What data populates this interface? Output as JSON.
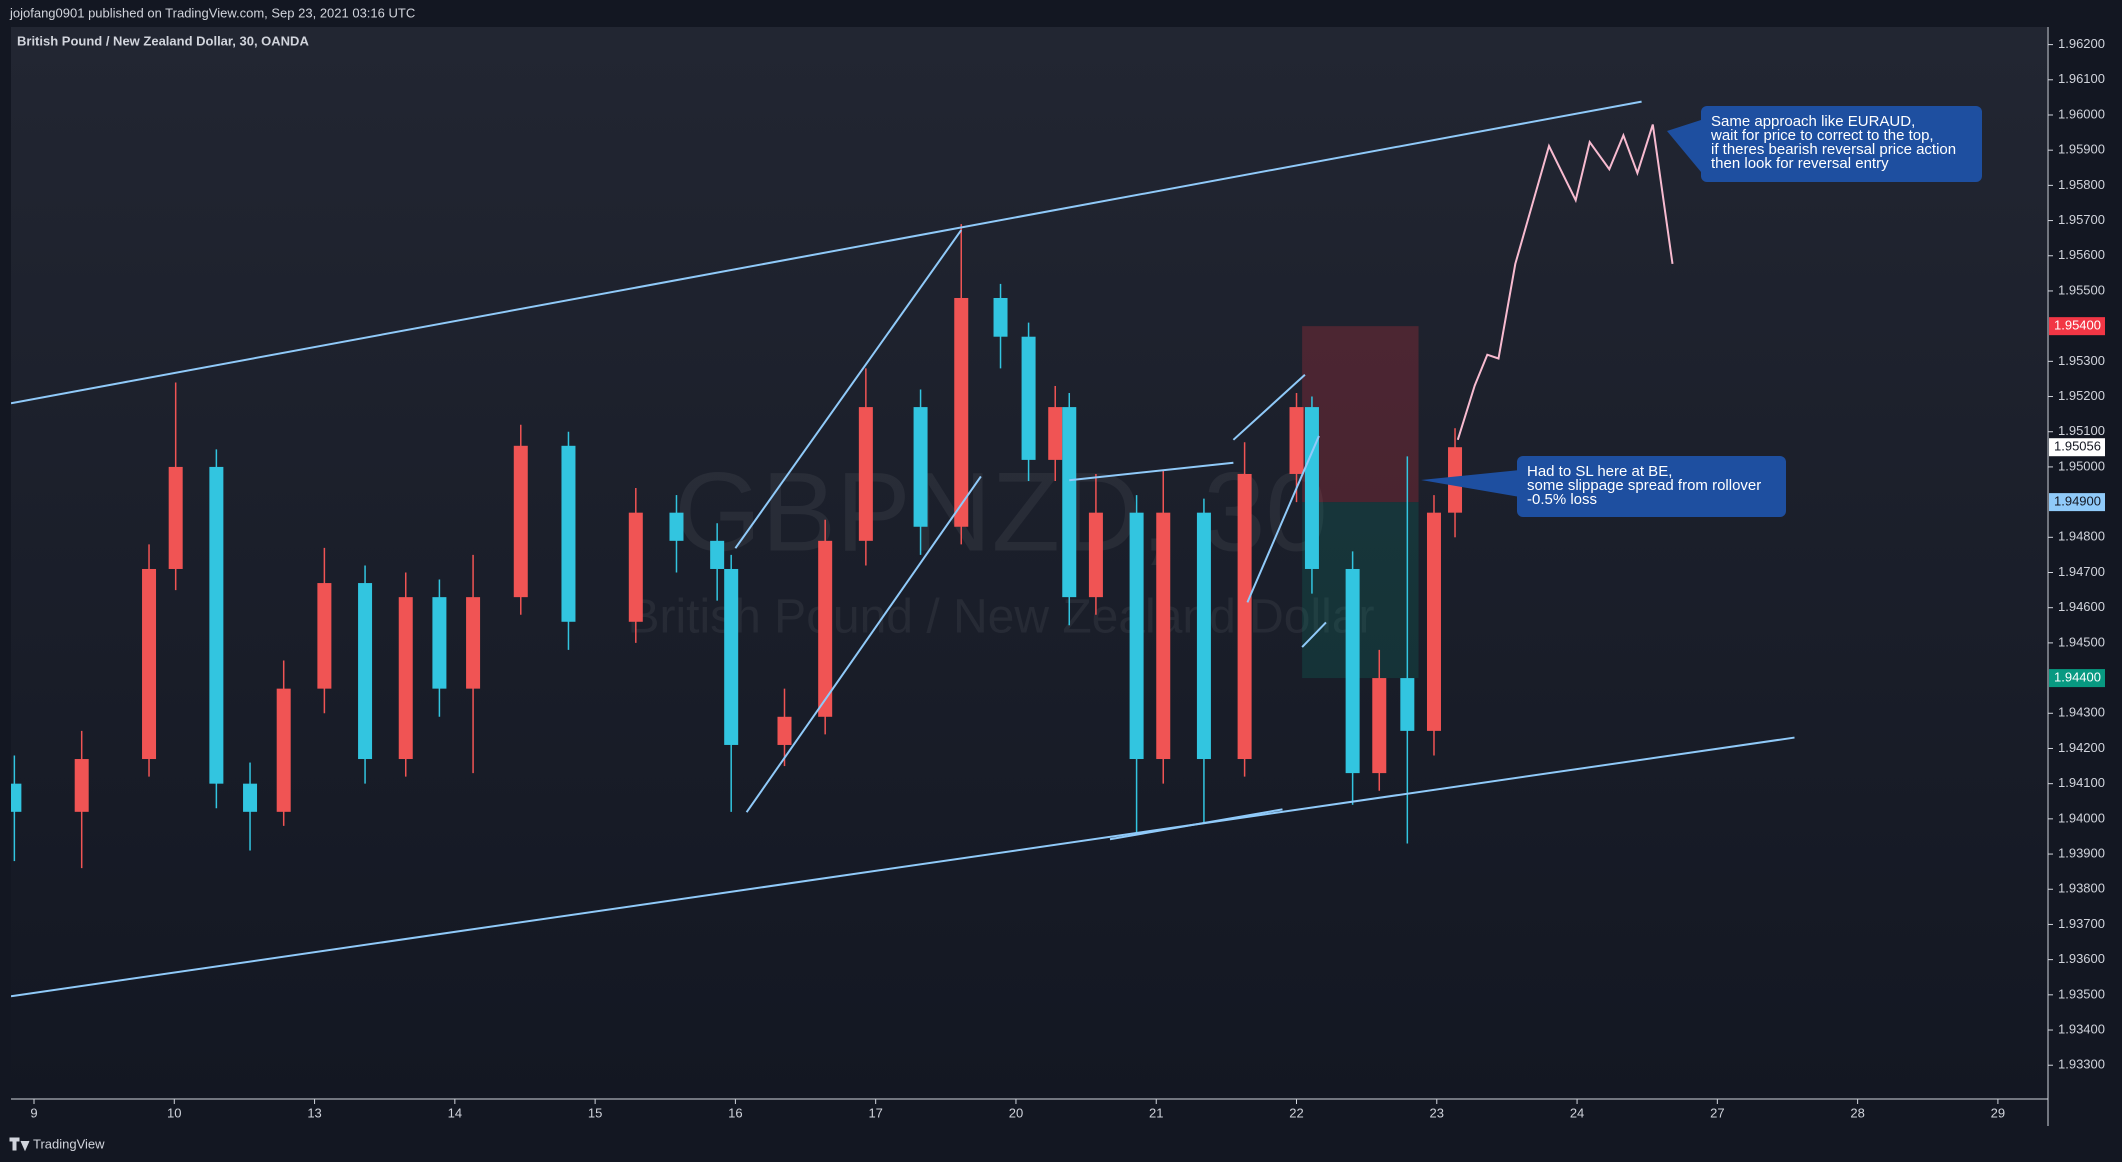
{
  "header": {
    "published": "jojofang0901 published on TradingView.com, Sep 23, 2021 03:16 UTC",
    "symbol": "British Pound / New Zealand Dollar, 30, OANDA",
    "footer": "TradingView"
  },
  "chart_data": {
    "type": "candlestick",
    "watermark": [
      "GBPNZD, 30",
      "British Pound / New Zealand Dollar"
    ],
    "up_color": "#f05454",
    "down_color": "#32c5e0",
    "grid": false,
    "xlim": [
      -0.164,
      14.35
    ],
    "xticks": [
      {
        "value": 0,
        "label": "9"
      },
      {
        "value": 1,
        "label": "10"
      },
      {
        "value": 2,
        "label": "13"
      },
      {
        "value": 3,
        "label": "14"
      },
      {
        "value": 4,
        "label": "15"
      },
      {
        "value": 5,
        "label": "16"
      },
      {
        "value": 6,
        "label": "17"
      },
      {
        "value": 7,
        "label": "20"
      },
      {
        "value": 8,
        "label": "21"
      },
      {
        "value": 9,
        "label": "22"
      },
      {
        "value": 10,
        "label": "23"
      },
      {
        "value": 11,
        "label": "24"
      },
      {
        "value": 12,
        "label": "27"
      },
      {
        "value": 13,
        "label": "28"
      },
      {
        "value": 14,
        "label": "29"
      }
    ],
    "ylim": [
      1.93204,
      1.9625
    ],
    "yticks": [
      {
        "value": 1.962,
        "label": "1.96200"
      },
      {
        "value": 1.961,
        "label": "1.96100"
      },
      {
        "value": 1.96,
        "label": "1.96000"
      },
      {
        "value": 1.959,
        "label": "1.95900"
      },
      {
        "value": 1.958,
        "label": "1.95800"
      },
      {
        "value": 1.957,
        "label": "1.95700"
      },
      {
        "value": 1.956,
        "label": "1.95600"
      },
      {
        "value": 1.955,
        "label": "1.95500"
      },
      {
        "value": 1.953,
        "label": "1.95300"
      },
      {
        "value": 1.952,
        "label": "1.95200"
      },
      {
        "value": 1.951,
        "label": "1.95100"
      },
      {
        "value": 1.95,
        "label": "1.95000"
      },
      {
        "value": 1.948,
        "label": "1.94800"
      },
      {
        "value": 1.947,
        "label": "1.94700"
      },
      {
        "value": 1.946,
        "label": "1.94600"
      },
      {
        "value": 1.945,
        "label": "1.94500"
      },
      {
        "value": 1.943,
        "label": "1.94300"
      },
      {
        "value": 1.942,
        "label": "1.94200"
      },
      {
        "value": 1.941,
        "label": "1.94100"
      },
      {
        "value": 1.94,
        "label": "1.94000"
      },
      {
        "value": 1.939,
        "label": "1.93900"
      },
      {
        "value": 1.938,
        "label": "1.93800"
      },
      {
        "value": 1.937,
        "label": "1.93700"
      },
      {
        "value": 1.936,
        "label": "1.93600"
      },
      {
        "value": 1.935,
        "label": "1.93500"
      },
      {
        "value": 1.934,
        "label": "1.93400"
      },
      {
        "value": 1.933,
        "label": "1.93300"
      }
    ],
    "price_tags": [
      {
        "value": 1.954,
        "label": "1.95400",
        "color": "#f23645",
        "text_color": "#ffffff"
      },
      {
        "value": 1.95056,
        "label": "1.95056",
        "color": "#ffffff",
        "text_color": "#131722"
      },
      {
        "value": 1.949,
        "label": "1.94900",
        "color": "#90caf9",
        "text_color": "#131722"
      },
      {
        "value": 1.944,
        "label": "1.94400",
        "color": "#089981",
        "text_color": "#ffffff"
      }
    ],
    "candles": {
      "x": [
        -0.14,
        0.34,
        0.82,
        1.01,
        1.3,
        1.54,
        1.78,
        2.07,
        2.36,
        2.65,
        2.89,
        3.13,
        3.47,
        3.81,
        4.29,
        4.58,
        4.87,
        4.97,
        5.35,
        5.64,
        5.93,
        6.32,
        6.61,
        6.89,
        7.09,
        7.28,
        7.38,
        7.57,
        7.86,
        8.05,
        8.34,
        8.63,
        9.0,
        9.11,
        9.4,
        9.59,
        9.79,
        9.98,
        10.13
      ],
      "open": [
        1.941,
        1.9402,
        1.9417,
        1.9471,
        1.95,
        1.941,
        1.9402,
        1.9437,
        1.9467,
        1.9417,
        1.9463,
        1.9437,
        1.9463,
        1.9506,
        1.9456,
        1.9487,
        1.9479,
        1.9471,
        1.9421,
        1.9429,
        1.9479,
        1.9517,
        1.9483,
        1.9548,
        1.9537,
        1.9502,
        1.9517,
        1.9463,
        1.9487,
        1.9417,
        1.9487,
        1.9417,
        1.9498,
        1.9517,
        1.9471,
        1.9413,
        1.944,
        1.9425,
        1.9487
      ],
      "high": [
        1.9418,
        1.9425,
        1.9478,
        1.9524,
        1.9505,
        1.9416,
        1.9445,
        1.9477,
        1.9472,
        1.947,
        1.9468,
        1.9475,
        1.9512,
        1.951,
        1.9494,
        1.9492,
        1.9484,
        1.9475,
        1.9437,
        1.9485,
        1.9528,
        1.9522,
        1.9569,
        1.9552,
        1.9541,
        1.9523,
        1.9521,
        1.9498,
        1.9492,
        1.9499,
        1.9491,
        1.9507,
        1.9521,
        1.952,
        1.9476,
        1.9448,
        1.9503,
        1.9492,
        1.9511
      ],
      "low": [
        1.9388,
        1.9386,
        1.9412,
        1.9465,
        1.9403,
        1.9391,
        1.9398,
        1.943,
        1.941,
        1.9412,
        1.9429,
        1.9413,
        1.9458,
        1.9448,
        1.945,
        1.947,
        1.9462,
        1.9402,
        1.9415,
        1.9424,
        1.9472,
        1.9475,
        1.9478,
        1.9528,
        1.9496,
        1.9496,
        1.9455,
        1.9458,
        1.9396,
        1.941,
        1.9399,
        1.9412,
        1.949,
        1.9464,
        1.9404,
        1.9408,
        1.9393,
        1.9418,
        1.948
      ],
      "close": [
        1.9402,
        1.9417,
        1.9471,
        1.95,
        1.941,
        1.9402,
        1.9437,
        1.9467,
        1.9417,
        1.9463,
        1.9437,
        1.9463,
        1.9506,
        1.9456,
        1.9487,
        1.9479,
        1.9471,
        1.9421,
        1.9429,
        1.9479,
        1.9517,
        1.9483,
        1.9548,
        1.9537,
        1.9502,
        1.9517,
        1.9463,
        1.9487,
        1.9417,
        1.9487,
        1.9417,
        1.9498,
        1.9517,
        1.9471,
        1.9413,
        1.944,
        1.9425,
        1.9487,
        1.95056
      ]
    },
    "position": {
      "x": [
        9.04,
        9.87
      ],
      "stop": 1.954,
      "entry": 1.949,
      "target": 1.944,
      "stop_color": "#f23645",
      "target_color": "#089981"
    },
    "trend_lines": {
      "color": "#90caf9",
      "lines": [
        {
          "x": [
            -0.164,
            11.46
          ],
          "y": [
            1.95181,
            1.96038
          ]
        },
        {
          "x": [
            -0.164,
            12.55
          ],
          "y": [
            1.93496,
            1.94231
          ]
        },
        {
          "x": [
            5.0,
            6.61
          ],
          "y": [
            1.94769,
            1.95673
          ]
        },
        {
          "x": [
            5.08,
            6.75
          ],
          "y": [
            1.94019,
            1.94973
          ]
        },
        {
          "x": [
            7.38,
            8.55
          ],
          "y": [
            1.94962,
            1.95012
          ]
        },
        {
          "x": [
            8.55,
            9.06
          ],
          "y": [
            1.95077,
            1.95262
          ]
        },
        {
          "x": [
            8.65,
            9.16
          ],
          "y": [
            1.94615,
            1.95088
          ]
        },
        {
          "x": [
            9.04,
            9.21
          ],
          "y": [
            1.94488,
            1.94558
          ]
        },
        {
          "x": [
            7.67,
            8.9
          ],
          "y": [
            1.93942,
            1.94027
          ]
        }
      ]
    },
    "projection": {
      "color": "#f8bbd0",
      "x": [
        10.15,
        10.27,
        10.36,
        10.44,
        10.56,
        10.8,
        10.99,
        11.09,
        11.23,
        11.33,
        11.43,
        11.54,
        11.68
      ],
      "y": [
        1.95077,
        1.95231,
        1.95319,
        1.95308,
        1.95577,
        1.95912,
        1.95758,
        1.95923,
        1.95846,
        1.95942,
        1.95835,
        1.95973,
        1.95577
      ]
    },
    "annotations": [
      {
        "lines": [
          "Same approach like EURAUD,",
          "wait for price to correct to the top,",
          "if theres bearish reversal price action",
          "then look for reversal entry"
        ]
      },
      {
        "lines": [
          "Had to SL here at BE,",
          "some slippage spread from rollover",
          "-0.5% loss"
        ]
      }
    ]
  }
}
